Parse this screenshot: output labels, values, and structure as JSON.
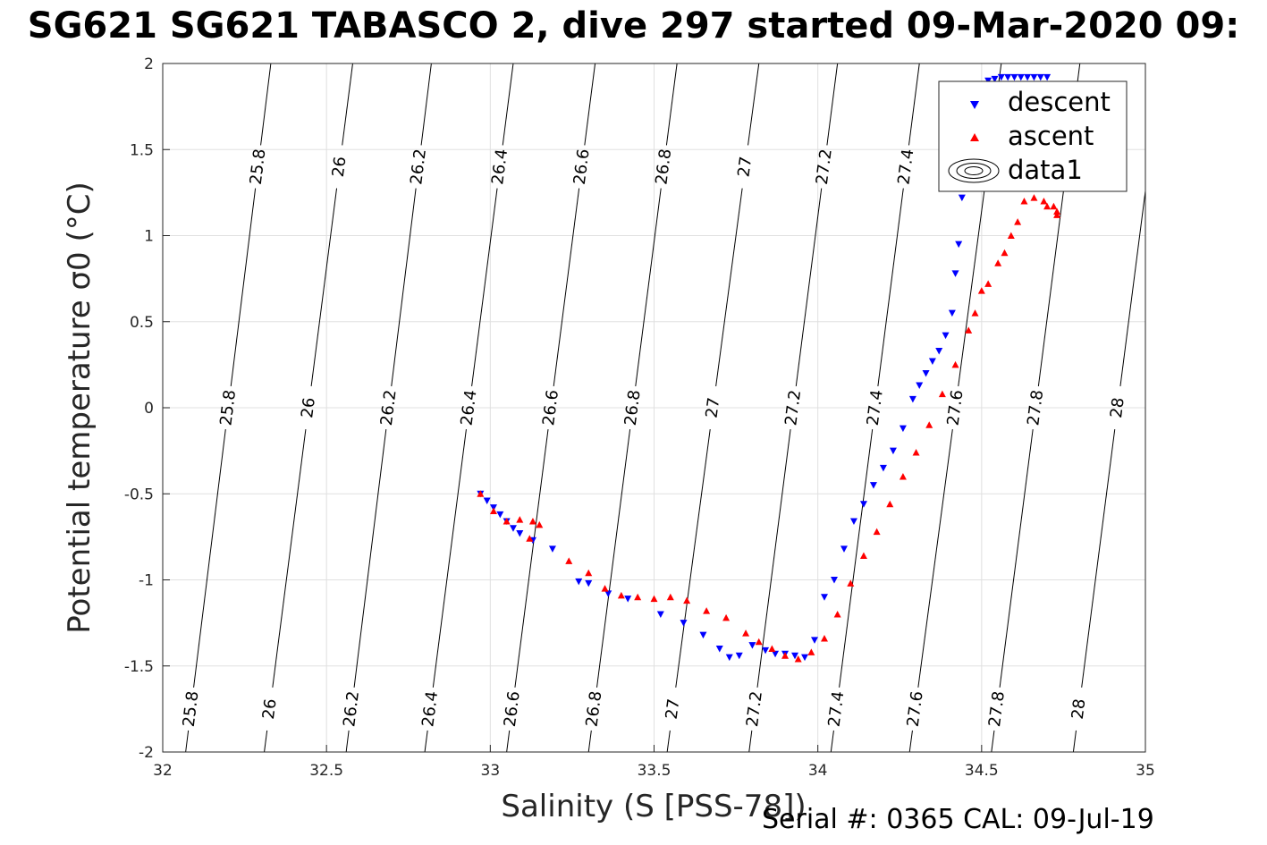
{
  "title": "SG621 SG621 TABASCO 2, dive 297 started 09-Mar-2020 09:",
  "footer": "Serial #: 0365  CAL: 09-Jul-19",
  "colors": {
    "descent": "#0000ff",
    "ascent": "#ff0000",
    "contour": "#000000",
    "grid": "#e0e0e0",
    "axis": "#262626"
  },
  "chart_data": {
    "type": "scatter",
    "xlabel": "Salinity (S [PSS-78])",
    "ylabel": "Potential temperature σ0 (°C)",
    "xlim": [
      32,
      35
    ],
    "ylim": [
      -2,
      2
    ],
    "xticks": [
      "32",
      "32.5",
      "33",
      "33.5",
      "34",
      "34.5",
      "35"
    ],
    "yticks": [
      "-2",
      "-1.5",
      "-1",
      "-0.5",
      "0",
      "0.5",
      "1",
      "1.5",
      "2"
    ],
    "grid": true,
    "legend_position": "top-right",
    "legend": [
      "descent",
      "ascent",
      "data1"
    ],
    "contours": [
      {
        "level": "25.8",
        "x_at_ymin": 32.07,
        "x_at_ymax": 32.33
      },
      {
        "level": "26",
        "x_at_ymin": 32.31,
        "x_at_ymax": 32.58
      },
      {
        "level": "26.2",
        "x_at_ymin": 32.56,
        "x_at_ymax": 32.82
      },
      {
        "level": "26.4",
        "x_at_ymin": 32.8,
        "x_at_ymax": 33.07
      },
      {
        "level": "26.6",
        "x_at_ymin": 33.05,
        "x_at_ymax": 33.32
      },
      {
        "level": "26.8",
        "x_at_ymin": 33.3,
        "x_at_ymax": 33.57
      },
      {
        "level": "27",
        "x_at_ymin": 33.54,
        "x_at_ymax": 33.82
      },
      {
        "level": "27.2",
        "x_at_ymin": 33.79,
        "x_at_ymax": 34.06
      },
      {
        "level": "27.4",
        "x_at_ymin": 34.04,
        "x_at_ymax": 34.31
      },
      {
        "level": "27.6",
        "x_at_ymin": 34.28,
        "x_at_ymax": 34.56
      },
      {
        "level": "27.8",
        "x_at_ymin": 34.53,
        "x_at_ymax": 34.8
      },
      {
        "level": "28",
        "x_at_ymin": 34.78,
        "x_at_ymax": 35.05
      }
    ],
    "series": [
      {
        "name": "descent",
        "marker": "triangle-down",
        "color": "#0000ff",
        "x": [
          32.97,
          32.99,
          33.01,
          33.03,
          33.05,
          33.07,
          33.09,
          33.13,
          33.19,
          33.27,
          33.3,
          33.36,
          33.42,
          33.52,
          33.59,
          33.65,
          33.7,
          33.73,
          33.76,
          33.8,
          33.84,
          33.87,
          33.9,
          33.93,
          33.96,
          33.99,
          34.02,
          34.05,
          34.08,
          34.11,
          34.14,
          34.17,
          34.2,
          34.23,
          34.26,
          34.29,
          34.31,
          34.33,
          34.35,
          34.37,
          34.39,
          34.41,
          34.42,
          34.43,
          34.44,
          34.45,
          34.46,
          34.47,
          34.48,
          34.5,
          34.52,
          34.54,
          34.56,
          34.58,
          34.6,
          34.62,
          34.64,
          34.66,
          34.68,
          34.7
        ],
        "y": [
          -0.5,
          -0.54,
          -0.58,
          -0.62,
          -0.66,
          -0.7,
          -0.73,
          -0.77,
          -0.82,
          -1.01,
          -1.02,
          -1.08,
          -1.11,
          -1.2,
          -1.25,
          -1.32,
          -1.4,
          -1.45,
          -1.44,
          -1.38,
          -1.41,
          -1.43,
          -1.43,
          -1.44,
          -1.45,
          -1.35,
          -1.1,
          -1.0,
          -0.82,
          -0.66,
          -0.56,
          -0.45,
          -0.35,
          -0.25,
          -0.12,
          0.05,
          0.13,
          0.2,
          0.27,
          0.33,
          0.42,
          0.55,
          0.78,
          0.95,
          1.22,
          1.35,
          1.58,
          1.83,
          1.86,
          1.88,
          1.9,
          1.91,
          1.92,
          1.92,
          1.92,
          1.92,
          1.92,
          1.92,
          1.92,
          1.92
        ]
      },
      {
        "name": "ascent",
        "marker": "triangle-up",
        "color": "#ff0000",
        "x": [
          32.97,
          33.01,
          33.05,
          33.09,
          33.13,
          33.15,
          33.12,
          33.24,
          33.3,
          33.35,
          33.4,
          33.45,
          33.5,
          33.55,
          33.6,
          33.66,
          33.72,
          33.78,
          33.82,
          33.86,
          33.9,
          33.94,
          33.98,
          34.02,
          34.06,
          34.1,
          34.14,
          34.18,
          34.22,
          34.26,
          34.3,
          34.34,
          34.38,
          34.42,
          34.46,
          34.48,
          34.5,
          34.52,
          34.55,
          34.57,
          34.59,
          34.61,
          34.63,
          34.66,
          34.69,
          34.7,
          34.72,
          34.73,
          34.73
        ],
        "y": [
          -0.5,
          -0.6,
          -0.66,
          -0.65,
          -0.66,
          -0.68,
          -0.76,
          -0.89,
          -0.96,
          -1.05,
          -1.09,
          -1.1,
          -1.11,
          -1.1,
          -1.12,
          -1.18,
          -1.22,
          -1.31,
          -1.36,
          -1.4,
          -1.44,
          -1.46,
          -1.42,
          -1.34,
          -1.2,
          -1.02,
          -0.86,
          -0.72,
          -0.56,
          -0.4,
          -0.26,
          -0.1,
          0.08,
          0.25,
          0.45,
          0.55,
          0.68,
          0.72,
          0.84,
          0.9,
          1.0,
          1.08,
          1.2,
          1.22,
          1.2,
          1.17,
          1.17,
          1.14,
          1.12
        ]
      }
    ]
  }
}
